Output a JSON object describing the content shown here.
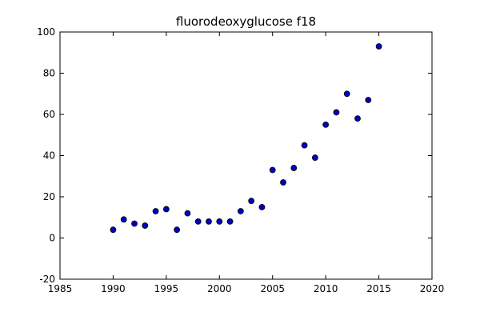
{
  "chart_data": {
    "type": "scatter",
    "title": "fluorodeoxyglucose f18",
    "xlabel": "",
    "ylabel": "",
    "xlim": [
      1985,
      2020
    ],
    "ylim": [
      -20,
      100
    ],
    "xticks": [
      1985,
      1990,
      1995,
      2000,
      2005,
      2010,
      2015,
      2020
    ],
    "yticks": [
      -20,
      0,
      20,
      40,
      60,
      80,
      100
    ],
    "grid": false,
    "colors": {
      "marker_fill": "#0000bf",
      "marker_edge": "#000000"
    },
    "x": [
      1990,
      1991,
      1992,
      1993,
      1994,
      1995,
      1996,
      1997,
      1998,
      1999,
      2000,
      2001,
      2002,
      2003,
      2004,
      2005,
      2006,
      2007,
      2008,
      2009,
      2010,
      2011,
      2012,
      2013,
      2014,
      2015
    ],
    "y": [
      4,
      9,
      7,
      6,
      13,
      14,
      4,
      12,
      8,
      8,
      8,
      8,
      13,
      18,
      15,
      33,
      27,
      34,
      45,
      39,
      55,
      61,
      70,
      58,
      67,
      93
    ]
  }
}
